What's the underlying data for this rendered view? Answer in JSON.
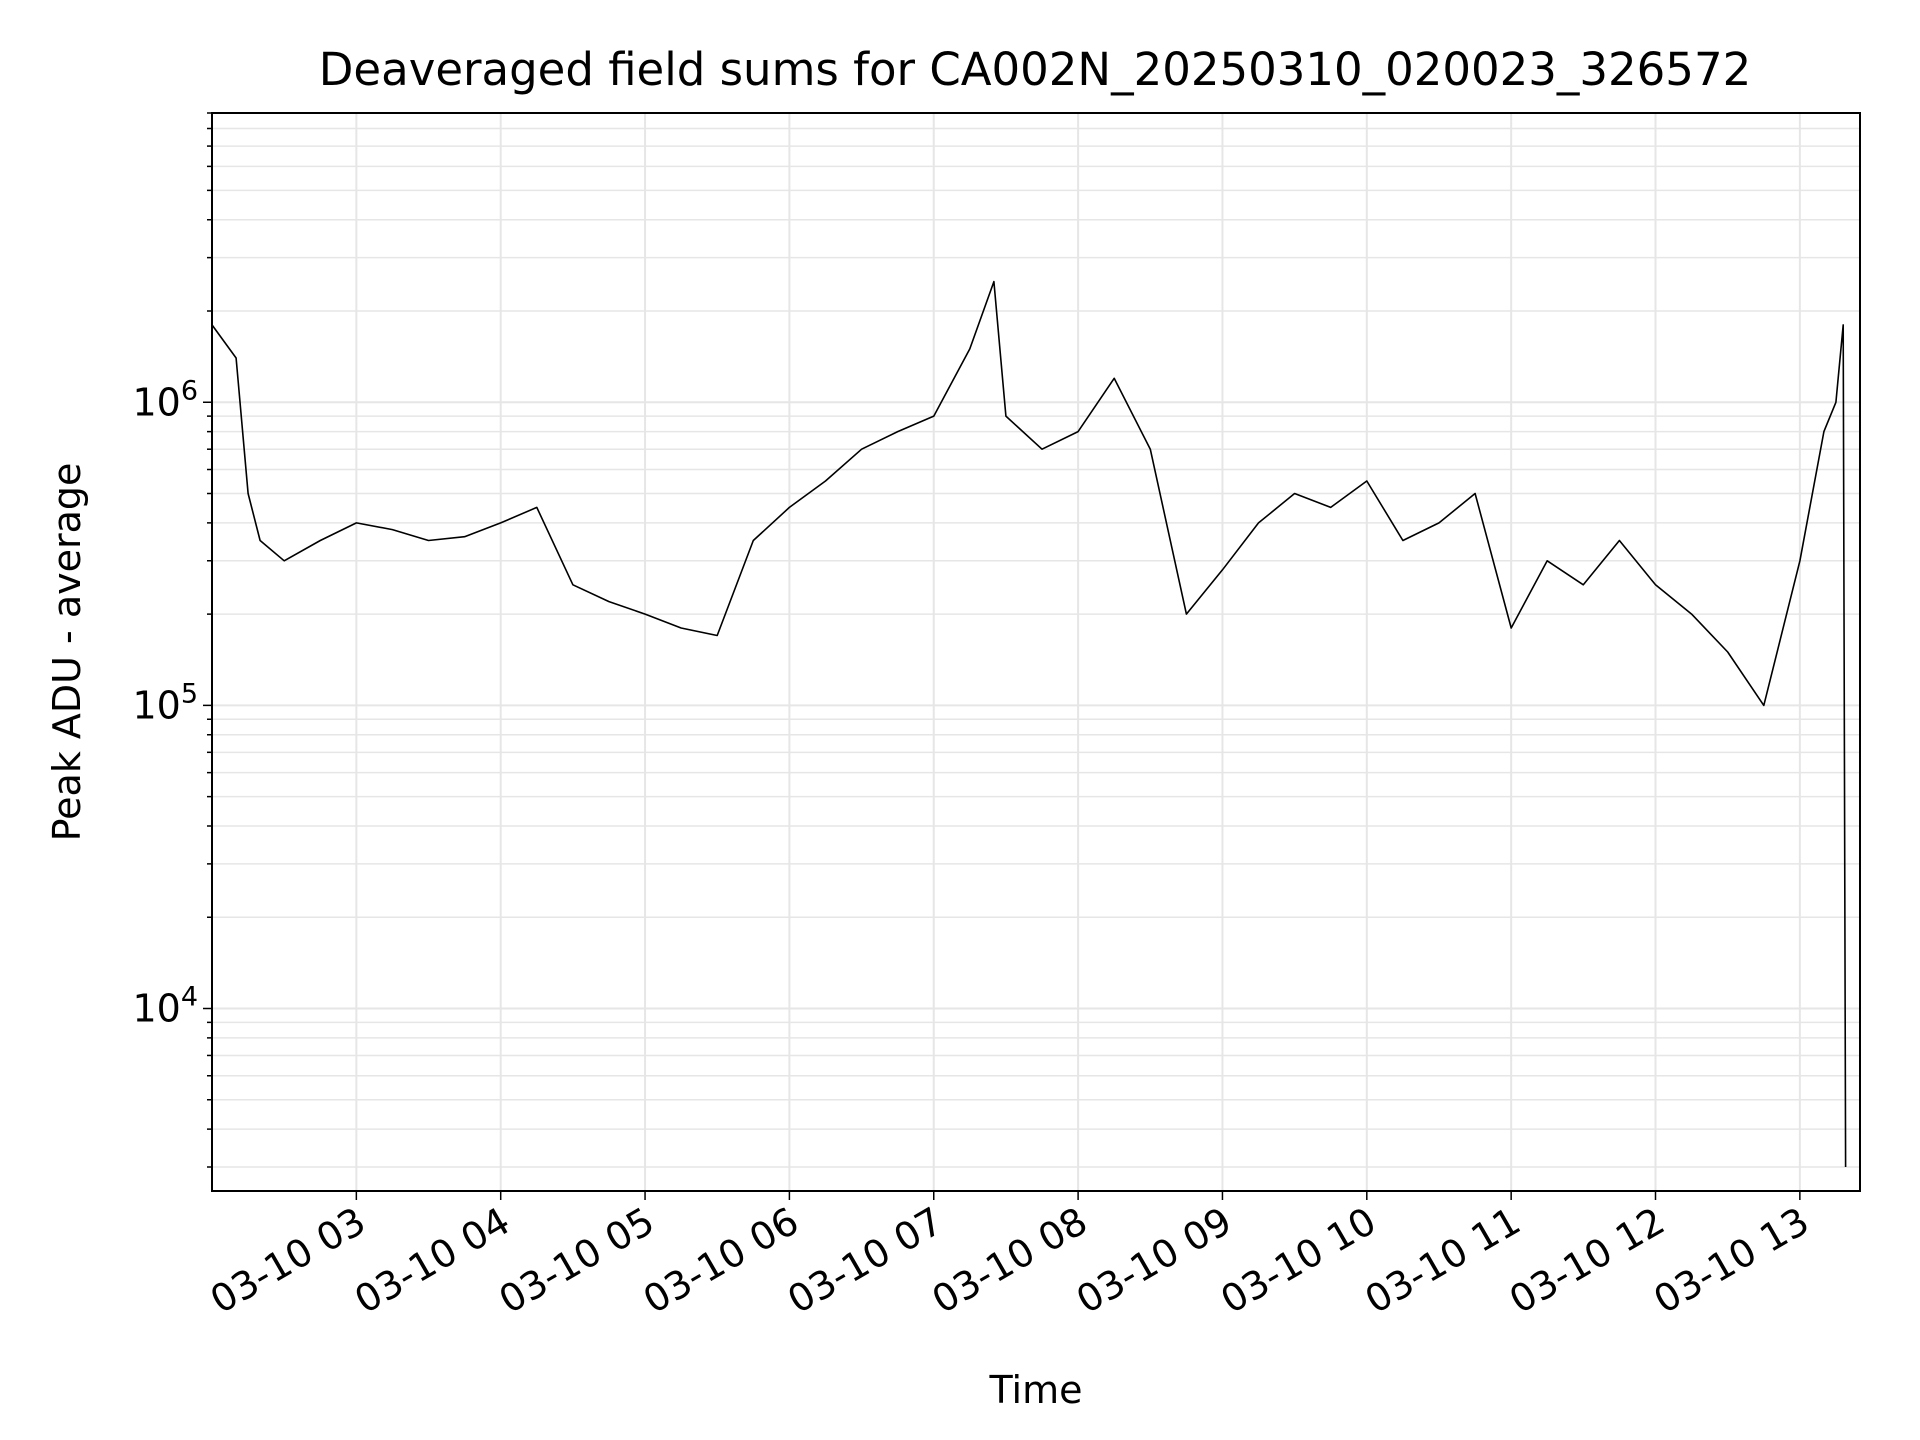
{
  "chart_data": {
    "type": "line",
    "title": "Deaveraged field sums for CA002N_20250310_020023_326572",
    "xlabel": "Time",
    "ylabel": "Peak ADU - average",
    "yscale": "log",
    "ylim": [
      2500,
      9000000
    ],
    "xlim": [
      "2025-03-10T02:00",
      "2025-03-10T13:25"
    ],
    "grid": true,
    "legend": "none",
    "line_color": "#000000",
    "grid_color": "#e6e6e6",
    "x_ticks": [
      {
        "time": "2025-03-10T03:00",
        "label": "03-10 03"
      },
      {
        "time": "2025-03-10T04:00",
        "label": "03-10 04"
      },
      {
        "time": "2025-03-10T05:00",
        "label": "03-10 05"
      },
      {
        "time": "2025-03-10T06:00",
        "label": "03-10 06"
      },
      {
        "time": "2025-03-10T07:00",
        "label": "03-10 07"
      },
      {
        "time": "2025-03-10T08:00",
        "label": "03-10 08"
      },
      {
        "time": "2025-03-10T09:00",
        "label": "03-10 09"
      },
      {
        "time": "2025-03-10T10:00",
        "label": "03-10 10"
      },
      {
        "time": "2025-03-10T11:00",
        "label": "03-10 11"
      },
      {
        "time": "2025-03-10T12:00",
        "label": "03-10 12"
      },
      {
        "time": "2025-03-10T13:00",
        "label": "03-10 13"
      }
    ],
    "y_ticks": [
      {
        "value": 10000,
        "base": "10",
        "exp": "4"
      },
      {
        "value": 100000,
        "base": "10",
        "exp": "5"
      },
      {
        "value": 1000000,
        "base": "10",
        "exp": "6"
      }
    ],
    "series": [
      {
        "x": [
          "2025-03-10T02:00",
          "2025-03-10T02:10",
          "2025-03-10T02:15",
          "2025-03-10T02:20",
          "2025-03-10T02:30",
          "2025-03-10T02:45",
          "2025-03-10T03:00",
          "2025-03-10T03:15",
          "2025-03-10T03:30",
          "2025-03-10T03:45",
          "2025-03-10T04:00",
          "2025-03-10T04:15",
          "2025-03-10T04:30",
          "2025-03-10T04:45",
          "2025-03-10T05:00",
          "2025-03-10T05:15",
          "2025-03-10T05:30",
          "2025-03-10T05:45",
          "2025-03-10T06:00",
          "2025-03-10T06:15",
          "2025-03-10T06:30",
          "2025-03-10T06:45",
          "2025-03-10T07:00",
          "2025-03-10T07:15",
          "2025-03-10T07:25",
          "2025-03-10T07:30",
          "2025-03-10T07:45",
          "2025-03-10T08:00",
          "2025-03-10T08:15",
          "2025-03-10T08:30",
          "2025-03-10T08:45",
          "2025-03-10T09:00",
          "2025-03-10T09:15",
          "2025-03-10T09:30",
          "2025-03-10T09:45",
          "2025-03-10T10:00",
          "2025-03-10T10:15",
          "2025-03-10T10:30",
          "2025-03-10T10:45",
          "2025-03-10T11:00",
          "2025-03-10T11:15",
          "2025-03-10T11:30",
          "2025-03-10T11:45",
          "2025-03-10T12:00",
          "2025-03-10T12:15",
          "2025-03-10T12:30",
          "2025-03-10T12:45",
          "2025-03-10T13:00",
          "2025-03-10T13:10",
          "2025-03-10T13:15",
          "2025-03-10T13:18",
          "2025-03-10T13:19"
        ],
        "y": [
          1800000,
          1400000,
          500000,
          350000,
          300000,
          350000,
          400000,
          380000,
          350000,
          360000,
          400000,
          450000,
          250000,
          220000,
          200000,
          180000,
          170000,
          350000,
          450000,
          550000,
          700000,
          800000,
          900000,
          1500000,
          2500000,
          900000,
          700000,
          800000,
          1200000,
          700000,
          200000,
          280000,
          400000,
          500000,
          450000,
          550000,
          350000,
          400000,
          500000,
          180000,
          300000,
          250000,
          350000,
          250000,
          200000,
          150000,
          100000,
          300000,
          800000,
          1000000,
          1800000,
          3000
        ]
      }
    ]
  }
}
